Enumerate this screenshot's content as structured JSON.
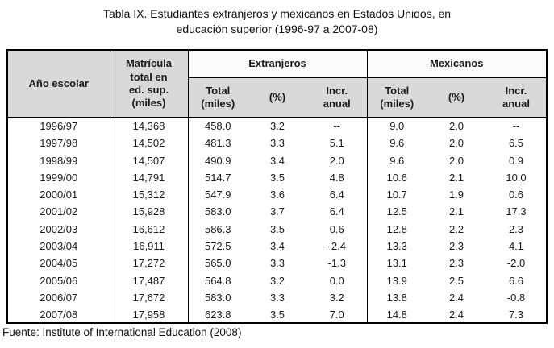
{
  "title": {
    "line1": "Tabla IX. Estudiantes extranjeros y mexicanos en Estados Unidos, en",
    "line2": "educación superior (1996-97 a 2007-08)"
  },
  "table": {
    "headers": {
      "year": "Año escolar",
      "enrollment": "Matrícula\ntotal en\ned. sup.\n(miles)",
      "group1": "Extranjeros",
      "group2": "Mexicanos",
      "sub_total": "Total\n(miles)",
      "sub_pct": "(%)",
      "sub_incr": "Incr.\nanual"
    },
    "rows": [
      [
        "1996/97",
        "14,368",
        "458.0",
        "3.2",
        "--",
        "9.0",
        "2.0",
        "--"
      ],
      [
        "1997/98",
        "14,502",
        "481.3",
        "3.3",
        "5.1",
        "9.6",
        "2.0",
        "6.5"
      ],
      [
        "1998/99",
        "14,507",
        "490.9",
        "3.4",
        "2.0",
        "9.6",
        "2.0",
        "0.9"
      ],
      [
        "1999/00",
        "14,791",
        "514.7",
        "3.5",
        "4.8",
        "10.6",
        "2.1",
        "10.0"
      ],
      [
        "2000/01",
        "15,312",
        "547.9",
        "3.6",
        "6.4",
        "10.7",
        "1.9",
        "0.6"
      ],
      [
        "2001/02",
        "15,928",
        "583.0",
        "3.7",
        "6.4",
        "12.5",
        "2.1",
        "17.3"
      ],
      [
        "2002/03",
        "16,612",
        "586.3",
        "3.5",
        "0.6",
        "12.8",
        "2.2",
        "2.3"
      ],
      [
        "2003/04",
        "16,911",
        "572.5",
        "3.4",
        "-2.4",
        "13.3",
        "2.3",
        "4.1"
      ],
      [
        "2004/05",
        "17,272",
        "565.0",
        "3.3",
        "-1.3",
        "13.1",
        "2.3",
        "-2.0"
      ],
      [
        "2005/06",
        "17,487",
        "564.8",
        "3.2",
        "0.0",
        "13.9",
        "2.5",
        "6.6"
      ],
      [
        "2006/07",
        "17,672",
        "583.0",
        "3.3",
        "3.2",
        "13.8",
        "2.4",
        "-0.8"
      ],
      [
        "2007/08",
        "17,958",
        "623.8",
        "3.5",
        "7.0",
        "14.8",
        "2.4",
        "7.3"
      ]
    ]
  },
  "footer": "Fuente: Institute of International Education (2008)",
  "colors": {
    "header_shade": "#d9d9d9",
    "band_shade": "#fbfbfb",
    "border_color": "#000000",
    "text_color": "#1a1a1a"
  }
}
